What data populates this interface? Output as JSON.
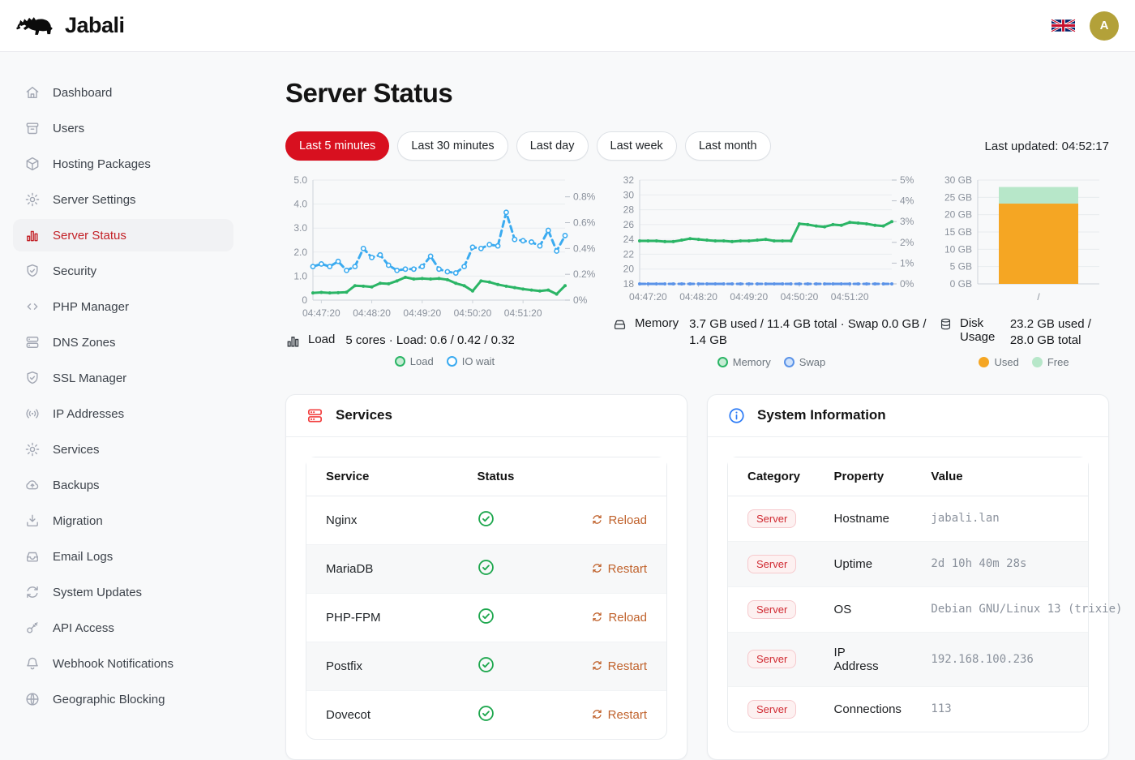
{
  "colors": {
    "accent_red": "#d8101f",
    "sidebar_active_red": "#c32127",
    "action_orange": "#c0622c",
    "ok_green": "#1ea74e",
    "info_blue": "#2e7cf6",
    "load_green": "#2bb566",
    "io_blue": "#3babf0",
    "swap_blue": "#5b93e8",
    "disk_used_orange": "#f5a623",
    "disk_free_green": "#b7e7c9",
    "avatar_gold": "#b3a139"
  },
  "header": {
    "brand": "Jabali",
    "language_flag": "uk-flag-icon",
    "avatar_initial": "A"
  },
  "sidebar": {
    "items": [
      {
        "label": "Dashboard",
        "slug": "dashboard",
        "icon": "home-icon",
        "active": false
      },
      {
        "label": "Users",
        "slug": "users",
        "icon": "users-archive-icon",
        "active": false
      },
      {
        "label": "Hosting Packages",
        "slug": "hosting-packages",
        "icon": "package-icon",
        "active": false
      },
      {
        "label": "Server Settings",
        "slug": "server-settings",
        "icon": "gear-icon",
        "active": false
      },
      {
        "label": "Server Status",
        "slug": "server-status",
        "icon": "bar-chart-icon",
        "active": true
      },
      {
        "label": "Security",
        "slug": "security",
        "icon": "shield-check-icon",
        "active": false
      },
      {
        "label": "PHP Manager",
        "slug": "php-manager",
        "icon": "code-icon",
        "active": false
      },
      {
        "label": "DNS Zones",
        "slug": "dns-zones",
        "icon": "server-stack-icon",
        "active": false
      },
      {
        "label": "SSL Manager",
        "slug": "ssl-manager",
        "icon": "shield-check-icon",
        "active": false
      },
      {
        "label": "IP Addresses",
        "slug": "ip-addresses",
        "icon": "broadcast-icon",
        "active": false
      },
      {
        "label": "Services",
        "slug": "services",
        "icon": "gear-icon",
        "active": false
      },
      {
        "label": "Backups",
        "slug": "backups",
        "icon": "cloud-upload-icon",
        "active": false
      },
      {
        "label": "Migration",
        "slug": "migration",
        "icon": "download-icon",
        "active": false
      },
      {
        "label": "Email Logs",
        "slug": "email-logs",
        "icon": "inbox-icon",
        "active": false
      },
      {
        "label": "System Updates",
        "slug": "system-updates",
        "icon": "refresh-icon",
        "active": false
      },
      {
        "label": "API Access",
        "slug": "api-access",
        "icon": "key-icon",
        "active": false
      },
      {
        "label": "Webhook Notifications",
        "slug": "webhook-notifications",
        "icon": "bell-icon",
        "active": false
      },
      {
        "label": "Geographic Blocking",
        "slug": "geographic-blocking",
        "icon": "globe-icon",
        "active": false
      }
    ]
  },
  "page": {
    "title": "Server Status",
    "time_ranges": [
      {
        "label": "Last 5 minutes",
        "active": true
      },
      {
        "label": "Last 30 minutes",
        "active": false
      },
      {
        "label": "Last day",
        "active": false
      },
      {
        "label": "Last week",
        "active": false
      },
      {
        "label": "Last month",
        "active": false
      }
    ],
    "last_updated": "Last updated: 04:52:17"
  },
  "stats": [
    {
      "icon": "bars-icon",
      "label": "Load",
      "value": "5 cores · Load: 0.6 / 0.42 / 0.32"
    },
    {
      "icon": "hdd-icon",
      "label": "Memory",
      "value": "3.7 GB used / 11.4 GB total · Swap 0.0 GB / 1.4 GB"
    },
    {
      "icon": "database-icon",
      "label": "Disk Usage",
      "value": "23.2 GB used / 28.0 GB total"
    }
  ],
  "chart_data": [
    {
      "type": "line",
      "name": "load",
      "x_start": "04:47:10",
      "x_step_seconds": 10,
      "x_tick_labels": [
        "04:47:20",
        "04:48:20",
        "04:49:20",
        "04:50:20",
        "04:51:20"
      ],
      "x_tick_indices": [
        1,
        7,
        13,
        19,
        25
      ],
      "left_axis": {
        "min": 0,
        "max": 5,
        "tick_values": [
          5,
          4,
          3,
          2,
          1,
          0
        ],
        "tick_labels": [
          "5.0",
          "4.0",
          "3.0",
          "2.0",
          "1.0",
          "0"
        ]
      },
      "right_axis": {
        "min": 0,
        "max": 0.93,
        "tick_values": [
          0.8,
          0.6,
          0.4,
          0.2,
          0
        ],
        "tick_labels": [
          "0.8%",
          "0.6%",
          "0.4%",
          "0.2%",
          "0%"
        ]
      },
      "legend_position": "bottom",
      "grid": true,
      "series": [
        {
          "name": "Load",
          "axis": "left",
          "color": "#2bb566",
          "style": "solid",
          "marker": "dot",
          "legend_fill": "#c6ecd4",
          "legend_stroke": "#2bb566",
          "values": [
            0.3,
            0.32,
            0.3,
            0.31,
            0.33,
            0.6,
            0.58,
            0.55,
            0.7,
            0.68,
            0.8,
            0.95,
            0.88,
            0.9,
            0.88,
            0.9,
            0.85,
            0.7,
            0.6,
            0.38,
            0.8,
            0.75,
            0.65,
            0.58,
            0.52,
            0.46,
            0.42,
            0.38,
            0.42,
            0.25,
            0.6
          ]
        },
        {
          "name": "IO wait",
          "axis": "right",
          "color": "#3babf0",
          "style": "dashed",
          "marker": "open",
          "legend_fill": "#ffffff",
          "legend_stroke": "#3babf0",
          "values": [
            0.26,
            0.28,
            0.26,
            0.3,
            0.23,
            0.26,
            0.4,
            0.33,
            0.35,
            0.27,
            0.23,
            0.24,
            0.24,
            0.26,
            0.34,
            0.24,
            0.22,
            0.21,
            0.26,
            0.41,
            0.4,
            0.43,
            0.42,
            0.68,
            0.47,
            0.46,
            0.45,
            0.42,
            0.54,
            0.38,
            0.5
          ]
        }
      ]
    },
    {
      "type": "line",
      "name": "memory",
      "x_start": "04:47:10",
      "x_step_seconds": 10,
      "x_tick_labels": [
        "04:47:20",
        "04:48:20",
        "04:49:20",
        "04:50:20",
        "04:51:20"
      ],
      "x_tick_indices": [
        1,
        7,
        13,
        19,
        25
      ],
      "left_axis": {
        "min": 18,
        "max": 32,
        "tick_values": [
          32,
          30,
          28,
          26,
          24,
          22,
          20,
          18
        ],
        "tick_labels": [
          "32",
          "30",
          "28",
          "26",
          "24",
          "22",
          "20",
          "18"
        ]
      },
      "right_axis": {
        "min": 0,
        "max": 5,
        "tick_values": [
          5,
          4,
          3,
          2,
          1,
          0
        ],
        "tick_labels": [
          "5%",
          "4%",
          "3%",
          "2%",
          "1%",
          "0%"
        ]
      },
      "legend_position": "bottom",
      "grid": true,
      "series": [
        {
          "name": "Memory",
          "axis": "left",
          "color": "#2bb566",
          "style": "solid",
          "marker": "dot",
          "legend_fill": "#c6ecd4",
          "legend_stroke": "#2bb566",
          "values": [
            23.8,
            23.8,
            23.8,
            23.7,
            23.7,
            23.9,
            24.1,
            24.0,
            23.9,
            23.8,
            23.8,
            23.7,
            23.8,
            23.8,
            23.9,
            24.0,
            23.8,
            23.8,
            23.8,
            26.1,
            26.0,
            25.8,
            25.7,
            26.0,
            25.9,
            26.3,
            26.2,
            26.1,
            25.9,
            25.8,
            26.4
          ]
        },
        {
          "name": "Swap",
          "axis": "right",
          "color": "#5b93e8",
          "style": "dashed",
          "marker": "dot",
          "legend_fill": "#cfe2fb",
          "legend_stroke": "#5b93e8",
          "values": [
            0,
            0,
            0,
            0,
            0,
            0,
            0,
            0,
            0,
            0,
            0,
            0,
            0,
            0,
            0,
            0,
            0,
            0,
            0,
            0,
            0,
            0,
            0,
            0,
            0,
            0,
            0,
            0,
            0,
            0,
            0
          ]
        }
      ]
    },
    {
      "type": "bar",
      "name": "disk",
      "stacked": true,
      "categories": [
        "/"
      ],
      "unit": "GB",
      "y_axis": {
        "min": 0,
        "max": 30,
        "tick_values": [
          30,
          25,
          20,
          15,
          10,
          5,
          0
        ],
        "tick_labels": [
          "30 GB",
          "25 GB",
          "20 GB",
          "15 GB",
          "10 GB",
          "5 GB",
          "0 GB"
        ]
      },
      "legend_position": "bottom",
      "grid": true,
      "series": [
        {
          "name": "Used",
          "color": "#f5a623",
          "legend_fill": "#f5a623",
          "legend_stroke": "#f5a623",
          "values": [
            23.2
          ]
        },
        {
          "name": "Free",
          "color": "#b7e7c9",
          "legend_fill": "#b7e7c9",
          "legend_stroke": "#b7e7c9",
          "values": [
            4.8
          ]
        }
      ]
    }
  ],
  "services_card": {
    "title": "Services",
    "icon": "server-stack-icon",
    "columns": [
      "Service",
      "Status"
    ],
    "rows": [
      {
        "service": "Nginx",
        "status": "ok",
        "action": "Reload"
      },
      {
        "service": "MariaDB",
        "status": "ok",
        "action": "Restart"
      },
      {
        "service": "PHP-FPM",
        "status": "ok",
        "action": "Reload"
      },
      {
        "service": "Postfix",
        "status": "ok",
        "action": "Restart"
      },
      {
        "service": "Dovecot",
        "status": "ok",
        "action": "Restart"
      }
    ]
  },
  "system_card": {
    "title": "System Information",
    "icon": "info-icon",
    "columns": [
      "Category",
      "Property",
      "Value"
    ],
    "rows": [
      {
        "category": "Server",
        "property": "Hostname",
        "value": "jabali.lan"
      },
      {
        "category": "Server",
        "property": "Uptime",
        "value": "2d 10h 40m 28s"
      },
      {
        "category": "Server",
        "property": "OS",
        "value": "Debian GNU/Linux 13 (trixie)"
      },
      {
        "category": "Server",
        "property": "IP Address",
        "value": "192.168.100.236"
      },
      {
        "category": "Server",
        "property": "Connections",
        "value": "113"
      }
    ]
  }
}
